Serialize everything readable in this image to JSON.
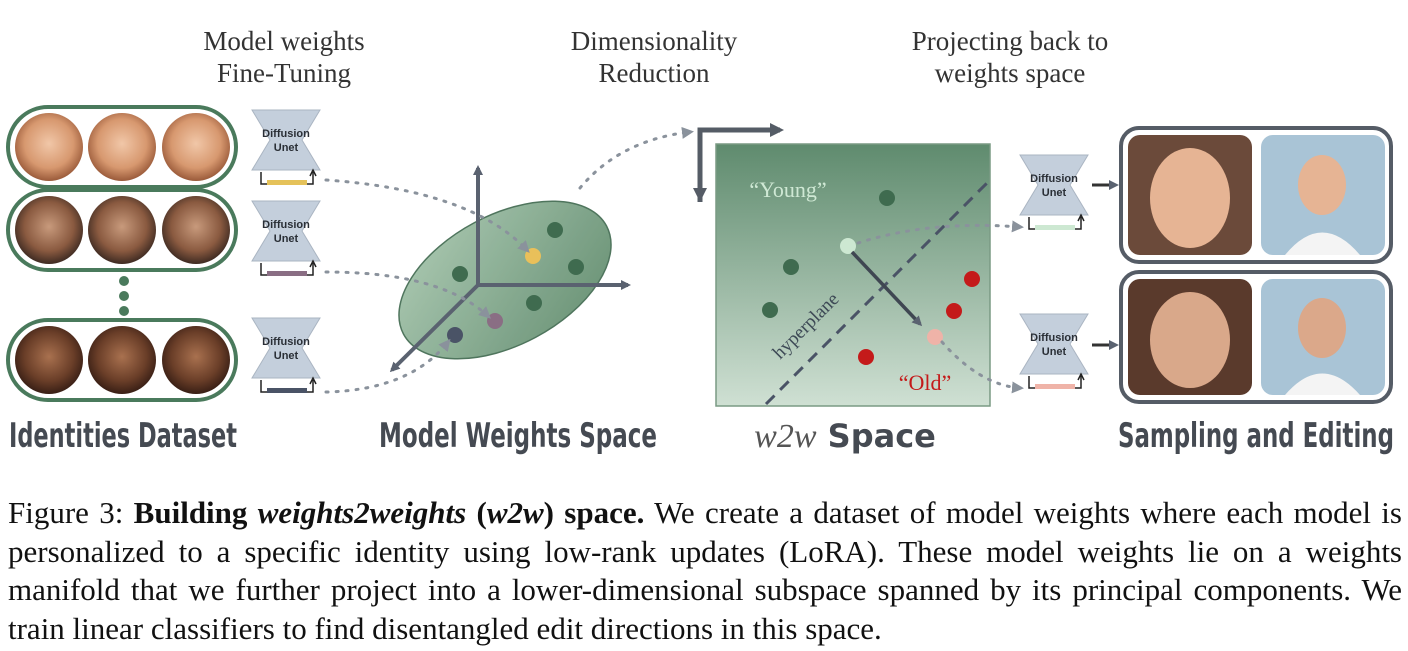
{
  "header_labels": {
    "finetune_line1": "Model weights",
    "finetune_line2": "Fine-Tuning",
    "dimred_line1": "Dimensionality",
    "dimred_line2": "Reduction",
    "project_line1": "Projecting back to",
    "project_line2": "weights space"
  },
  "unet_label_line1": "Diffusion",
  "unet_label_line2": "Unet",
  "section_titles": {
    "identities": "Identities Dataset",
    "weights_space": "Model Weights Space",
    "w2w_prefix": "w2w",
    "w2w_suffix": " Space",
    "sampling": "Sampling and Editing"
  },
  "w2w_labels": {
    "young": "“Young”",
    "old": "“Old”",
    "hyperplane": "hyperplane"
  },
  "lora_colors": [
    "#e5c25a",
    "#8a6e84",
    "#4a5366"
  ],
  "colors": {
    "panel_green": "#5e8a6e",
    "point_green": "#3f6b4f",
    "point_red": "#c41a1a",
    "point_light_green": "#cde8d2",
    "point_pink": "#efb3a8",
    "point_yellow": "#e9c05a",
    "point_purple": "#8a6e84",
    "point_navy": "#4a5366",
    "unet_fill": "#c4cfdc",
    "arrow_gray": "#5a6270"
  },
  "caption": {
    "fig_label": "Figure 3:",
    "bold_lead": "Building",
    "bold_italic": "weights2weights",
    "bold_paren_open": "(",
    "bold_paren_italic": "w2w",
    "bold_paren_close": ") space.",
    "body": "We create a dataset of model weights where each model is personalized to a specific identity using low-rank updates (LoRA). These model weights lie on a weights manifold that we further project into a lower-dimensional subspace spanned by its principal components. We train linear classifiers to find disentangled edit directions in this space."
  }
}
